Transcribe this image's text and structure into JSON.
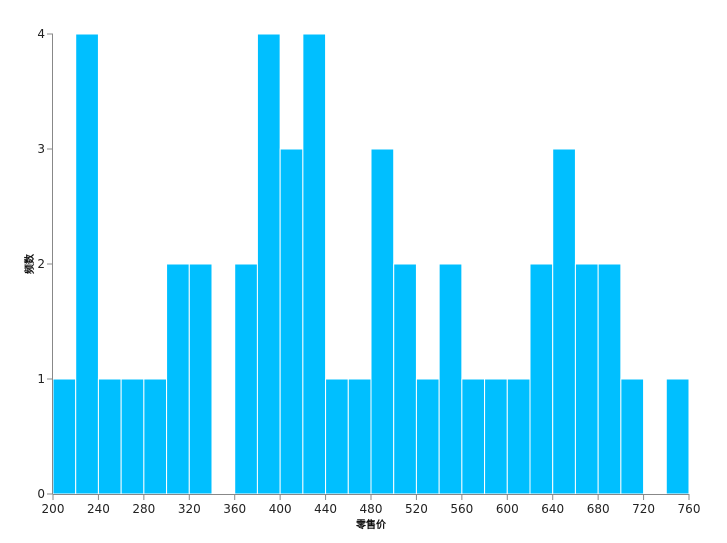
{
  "chart_data": {
    "type": "bar",
    "title": "",
    "xlabel": "零售价",
    "ylabel": "频数",
    "bin_width": 20,
    "bins": [
      {
        "start": 200,
        "end": 220,
        "count": 1
      },
      {
        "start": 220,
        "end": 240,
        "count": 4
      },
      {
        "start": 240,
        "end": 260,
        "count": 1
      },
      {
        "start": 260,
        "end": 280,
        "count": 1
      },
      {
        "start": 280,
        "end": 300,
        "count": 1
      },
      {
        "start": 300,
        "end": 320,
        "count": 2
      },
      {
        "start": 320,
        "end": 340,
        "count": 2
      },
      {
        "start": 340,
        "end": 360,
        "count": 0
      },
      {
        "start": 360,
        "end": 380,
        "count": 2
      },
      {
        "start": 380,
        "end": 400,
        "count": 4
      },
      {
        "start": 400,
        "end": 420,
        "count": 3
      },
      {
        "start": 420,
        "end": 440,
        "count": 4
      },
      {
        "start": 440,
        "end": 460,
        "count": 1
      },
      {
        "start": 460,
        "end": 480,
        "count": 1
      },
      {
        "start": 480,
        "end": 500,
        "count": 3
      },
      {
        "start": 500,
        "end": 520,
        "count": 2
      },
      {
        "start": 520,
        "end": 540,
        "count": 1
      },
      {
        "start": 540,
        "end": 560,
        "count": 2
      },
      {
        "start": 560,
        "end": 580,
        "count": 1
      },
      {
        "start": 580,
        "end": 600,
        "count": 1
      },
      {
        "start": 600,
        "end": 620,
        "count": 1
      },
      {
        "start": 620,
        "end": 640,
        "count": 2
      },
      {
        "start": 640,
        "end": 660,
        "count": 3
      },
      {
        "start": 660,
        "end": 680,
        "count": 2
      },
      {
        "start": 680,
        "end": 700,
        "count": 2
      },
      {
        "start": 700,
        "end": 720,
        "count": 1
      },
      {
        "start": 720,
        "end": 740,
        "count": 0
      },
      {
        "start": 740,
        "end": 760,
        "count": 1
      }
    ],
    "xlim": [
      200,
      760
    ],
    "ylim": [
      0,
      4
    ],
    "x_ticks": [
      "200",
      "240",
      "280",
      "320",
      "360",
      "400",
      "440",
      "480",
      "520",
      "560",
      "600",
      "640",
      "680",
      "720",
      "760"
    ],
    "y_ticks": [
      "0",
      "1",
      "2",
      "3",
      "4"
    ],
    "grid": false,
    "legend": "none",
    "bar_color": "#00BFFF",
    "bar_edge_color": "#FFFFFF",
    "axis_color": "#888888"
  }
}
